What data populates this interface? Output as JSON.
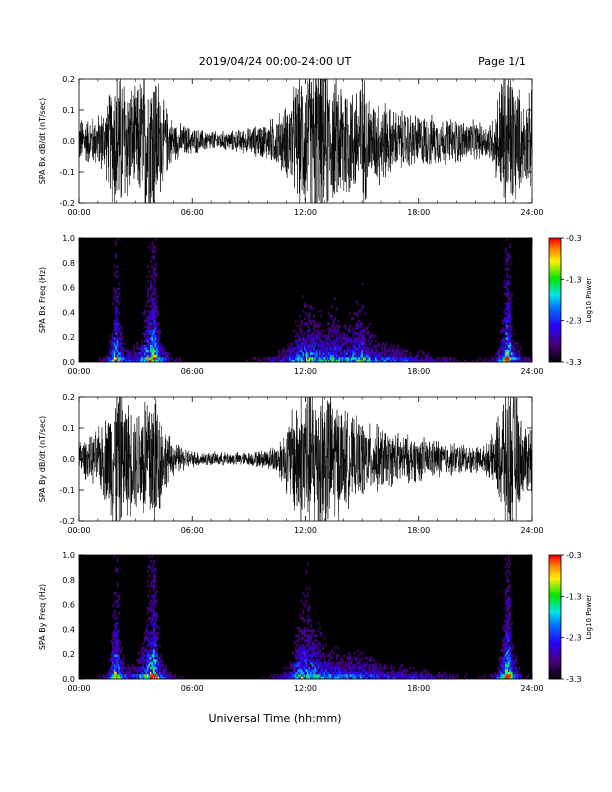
{
  "header": {
    "title": "2019/04/24  00:00-24:00 UT",
    "page": "Page 1/1"
  },
  "footer": {
    "xlabel": "Universal Time (hh:mm)"
  },
  "chart_data": [
    {
      "type": "line",
      "ylabel": "SPA Bx dB/dt (nT/sec)",
      "x_ticks": [
        "00:00",
        "06:00",
        "12:00",
        "18:00",
        "24:00"
      ],
      "y_ticks": [
        "0.2",
        "0.1",
        "0.0",
        "-0.1",
        "-0.2"
      ],
      "xlim": [
        0,
        24
      ],
      "ylim": [
        -0.2,
        0.2
      ],
      "envelope": {
        "hours": [
          0,
          0.5,
          1,
          1.5,
          2.0,
          2.5,
          3.0,
          3.5,
          4.0,
          4.5,
          5,
          6,
          7,
          8,
          9,
          10,
          10.5,
          11,
          11.5,
          12,
          12.5,
          13,
          13.5,
          14,
          14.5,
          15,
          15.5,
          16,
          16.5,
          17,
          17.5,
          18,
          18.5,
          19,
          19.5,
          20,
          20.5,
          21,
          21.5,
          22,
          22.5,
          23,
          23.5,
          24
        ],
        "amplitude": [
          0.07,
          0.07,
          0.08,
          0.12,
          0.25,
          0.2,
          0.15,
          0.25,
          0.25,
          0.12,
          0.06,
          0.04,
          0.03,
          0.03,
          0.04,
          0.06,
          0.08,
          0.11,
          0.18,
          0.22,
          0.25,
          0.25,
          0.18,
          0.22,
          0.16,
          0.22,
          0.12,
          0.14,
          0.1,
          0.09,
          0.09,
          0.08,
          0.08,
          0.07,
          0.07,
          0.07,
          0.06,
          0.06,
          0.05,
          0.08,
          0.25,
          0.22,
          0.12,
          0.15
        ]
      }
    },
    {
      "type": "heatmap",
      "ylabel": "SPA Bx Freq (Hz)",
      "x_ticks": [
        "00:00",
        "06:00",
        "12:00",
        "18:00",
        "24:00"
      ],
      "y_ticks": [
        "1.0",
        "0.8",
        "0.6",
        "0.4",
        "0.2",
        "0.0"
      ],
      "xlim": [
        0,
        24
      ],
      "ylim": [
        0,
        1.0
      ],
      "colorbar": {
        "label": "Log10 Power",
        "ticks": [
          "-0.3",
          "-1.3",
          "-2.3",
          "-3.3"
        ],
        "range": [
          -3.3,
          -0.3
        ]
      },
      "activity": {
        "hours": [
          0,
          1,
          1.5,
          1.8,
          2.0,
          2.2,
          2.5,
          3.0,
          3.5,
          3.8,
          4.0,
          4.3,
          5,
          6,
          7,
          8,
          9,
          10,
          11,
          11.5,
          12,
          12.5,
          13,
          13.5,
          14,
          14.5,
          15,
          15.5,
          16,
          17,
          18,
          19,
          20,
          21,
          22,
          22.5,
          22.7,
          23,
          23.5,
          24
        ],
        "level": [
          0.12,
          0.15,
          0.25,
          0.6,
          0.85,
          0.5,
          0.35,
          0.35,
          0.6,
          0.8,
          0.9,
          0.45,
          0.2,
          0.12,
          0.1,
          0.12,
          0.15,
          0.22,
          0.35,
          0.5,
          0.62,
          0.58,
          0.5,
          0.6,
          0.5,
          0.55,
          0.62,
          0.45,
          0.4,
          0.35,
          0.3,
          0.22,
          0.18,
          0.15,
          0.2,
          0.6,
          0.95,
          0.5,
          0.25,
          0.2
        ]
      }
    },
    {
      "type": "line",
      "ylabel": "SPA By dB/dt (nT/sec)",
      "x_ticks": [
        "00:00",
        "06:00",
        "12:00",
        "18:00",
        "24:00"
      ],
      "y_ticks": [
        "0.2",
        "0.1",
        "0.0",
        "-0.1",
        "-0.2"
      ],
      "xlim": [
        0,
        24
      ],
      "ylim": [
        -0.2,
        0.2
      ],
      "envelope": {
        "hours": [
          0,
          0.5,
          1,
          1.5,
          2.0,
          2.5,
          3.0,
          3.5,
          4.0,
          4.5,
          5,
          6,
          7,
          8,
          9,
          10,
          10.5,
          11,
          11.5,
          12,
          12.5,
          13,
          13.5,
          14,
          14.5,
          15,
          15.5,
          16,
          16.5,
          17,
          17.5,
          18,
          18.5,
          19,
          19.5,
          20,
          20.5,
          21,
          21.5,
          22,
          22.5,
          23,
          23.5,
          24
        ],
        "amplitude": [
          0.06,
          0.06,
          0.09,
          0.14,
          0.25,
          0.18,
          0.15,
          0.22,
          0.25,
          0.1,
          0.05,
          0.025,
          0.02,
          0.02,
          0.02,
          0.03,
          0.05,
          0.1,
          0.2,
          0.25,
          0.25,
          0.25,
          0.2,
          0.16,
          0.12,
          0.12,
          0.1,
          0.1,
          0.08,
          0.08,
          0.07,
          0.07,
          0.06,
          0.06,
          0.05,
          0.05,
          0.045,
          0.04,
          0.04,
          0.08,
          0.22,
          0.25,
          0.1,
          0.12
        ]
      }
    },
    {
      "type": "heatmap",
      "ylabel": "SPA By Freq (Hz)",
      "x_ticks": [
        "00:00",
        "06:00",
        "12:00",
        "18:00",
        "24:00"
      ],
      "y_ticks": [
        "1.0",
        "0.8",
        "0.6",
        "0.4",
        "0.2",
        "0.0"
      ],
      "xlim": [
        0,
        24
      ],
      "ylim": [
        0,
        1.0
      ],
      "colorbar": {
        "label": "Log10 Power",
        "ticks": [
          "-0.3",
          "-1.3",
          "-2.3",
          "-3.3"
        ],
        "range": [
          -3.3,
          -0.3
        ]
      },
      "activity": {
        "hours": [
          0,
          1,
          1.5,
          1.8,
          2.0,
          2.2,
          2.5,
          3.0,
          3.5,
          3.8,
          4.0,
          4.3,
          5,
          6,
          7,
          8,
          9,
          10,
          11,
          11.5,
          12,
          12.5,
          13,
          13.5,
          14,
          14.5,
          15,
          15.5,
          16,
          17,
          18,
          19,
          20,
          21,
          22,
          22.5,
          22.7,
          23,
          23.5,
          24
        ],
        "level": [
          0.12,
          0.15,
          0.25,
          0.65,
          0.85,
          0.5,
          0.35,
          0.35,
          0.6,
          0.8,
          0.9,
          0.45,
          0.2,
          0.1,
          0.08,
          0.08,
          0.1,
          0.15,
          0.3,
          0.55,
          0.7,
          0.6,
          0.5,
          0.45,
          0.42,
          0.45,
          0.42,
          0.4,
          0.35,
          0.32,
          0.3,
          0.25,
          0.2,
          0.15,
          0.2,
          0.6,
          0.95,
          0.5,
          0.2,
          0.15
        ]
      }
    }
  ]
}
